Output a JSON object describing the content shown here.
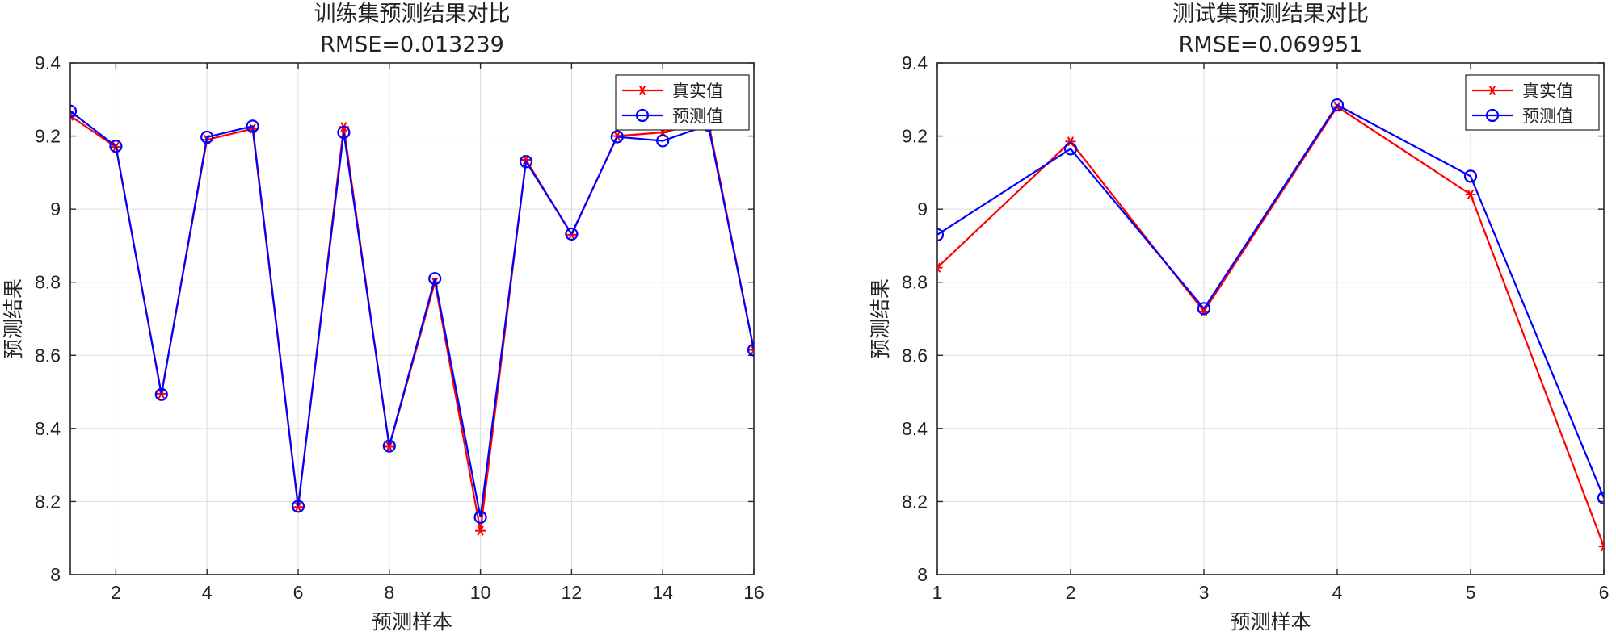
{
  "chart_data": [
    {
      "type": "line",
      "title": "训练集预测结果对比",
      "subtitle": "RMSE=0.013239",
      "xlabel": "预测样本",
      "ylabel": "预测结果",
      "xlim": [
        1,
        16
      ],
      "ylim": [
        8,
        9.4
      ],
      "xticks": [
        2,
        4,
        6,
        8,
        10,
        12,
        14,
        16
      ],
      "yticks": [
        8,
        8.2,
        8.4,
        8.6,
        8.8,
        9,
        9.2,
        9.4
      ],
      "grid": true,
      "legend_position": "top-right",
      "x": [
        1,
        2,
        3,
        4,
        5,
        6,
        7,
        8,
        9,
        10,
        11,
        12,
        13,
        14,
        15,
        16
      ],
      "series": [
        {
          "name": "真实值",
          "color": "#ff0000",
          "marker": "asterisk",
          "values": [
            9.255,
            9.17,
            8.495,
            9.19,
            9.22,
            8.185,
            9.225,
            8.35,
            8.8,
            8.12,
            9.135,
            8.93,
            9.2,
            9.21,
            9.24,
            8.615
          ]
        },
        {
          "name": "预测值",
          "color": "#0000ff",
          "marker": "circle",
          "values": [
            9.268,
            9.172,
            8.493,
            9.197,
            9.227,
            8.187,
            9.21,
            8.352,
            8.81,
            8.157,
            9.13,
            8.932,
            9.198,
            9.187,
            9.23,
            8.615
          ]
        }
      ]
    },
    {
      "type": "line",
      "title": "测试集预测结果对比",
      "subtitle": "RMSE=0.069951",
      "xlabel": "预测样本",
      "ylabel": "预测结果",
      "xlim": [
        1,
        6
      ],
      "ylim": [
        8,
        9.4
      ],
      "xticks": [
        1,
        2,
        3,
        4,
        5,
        6
      ],
      "yticks": [
        8,
        8.2,
        8.4,
        8.6,
        8.8,
        9,
        9.2,
        9.4
      ],
      "grid": true,
      "legend_position": "top-right",
      "x": [
        1,
        2,
        3,
        4,
        5,
        6
      ],
      "series": [
        {
          "name": "真实值",
          "color": "#ff0000",
          "marker": "asterisk",
          "values": [
            8.84,
            9.185,
            8.72,
            9.28,
            9.04,
            8.077
          ]
        },
        {
          "name": "预测值",
          "color": "#0000ff",
          "marker": "circle",
          "values": [
            8.93,
            9.165,
            8.728,
            9.285,
            9.09,
            8.21
          ]
        }
      ]
    }
  ]
}
